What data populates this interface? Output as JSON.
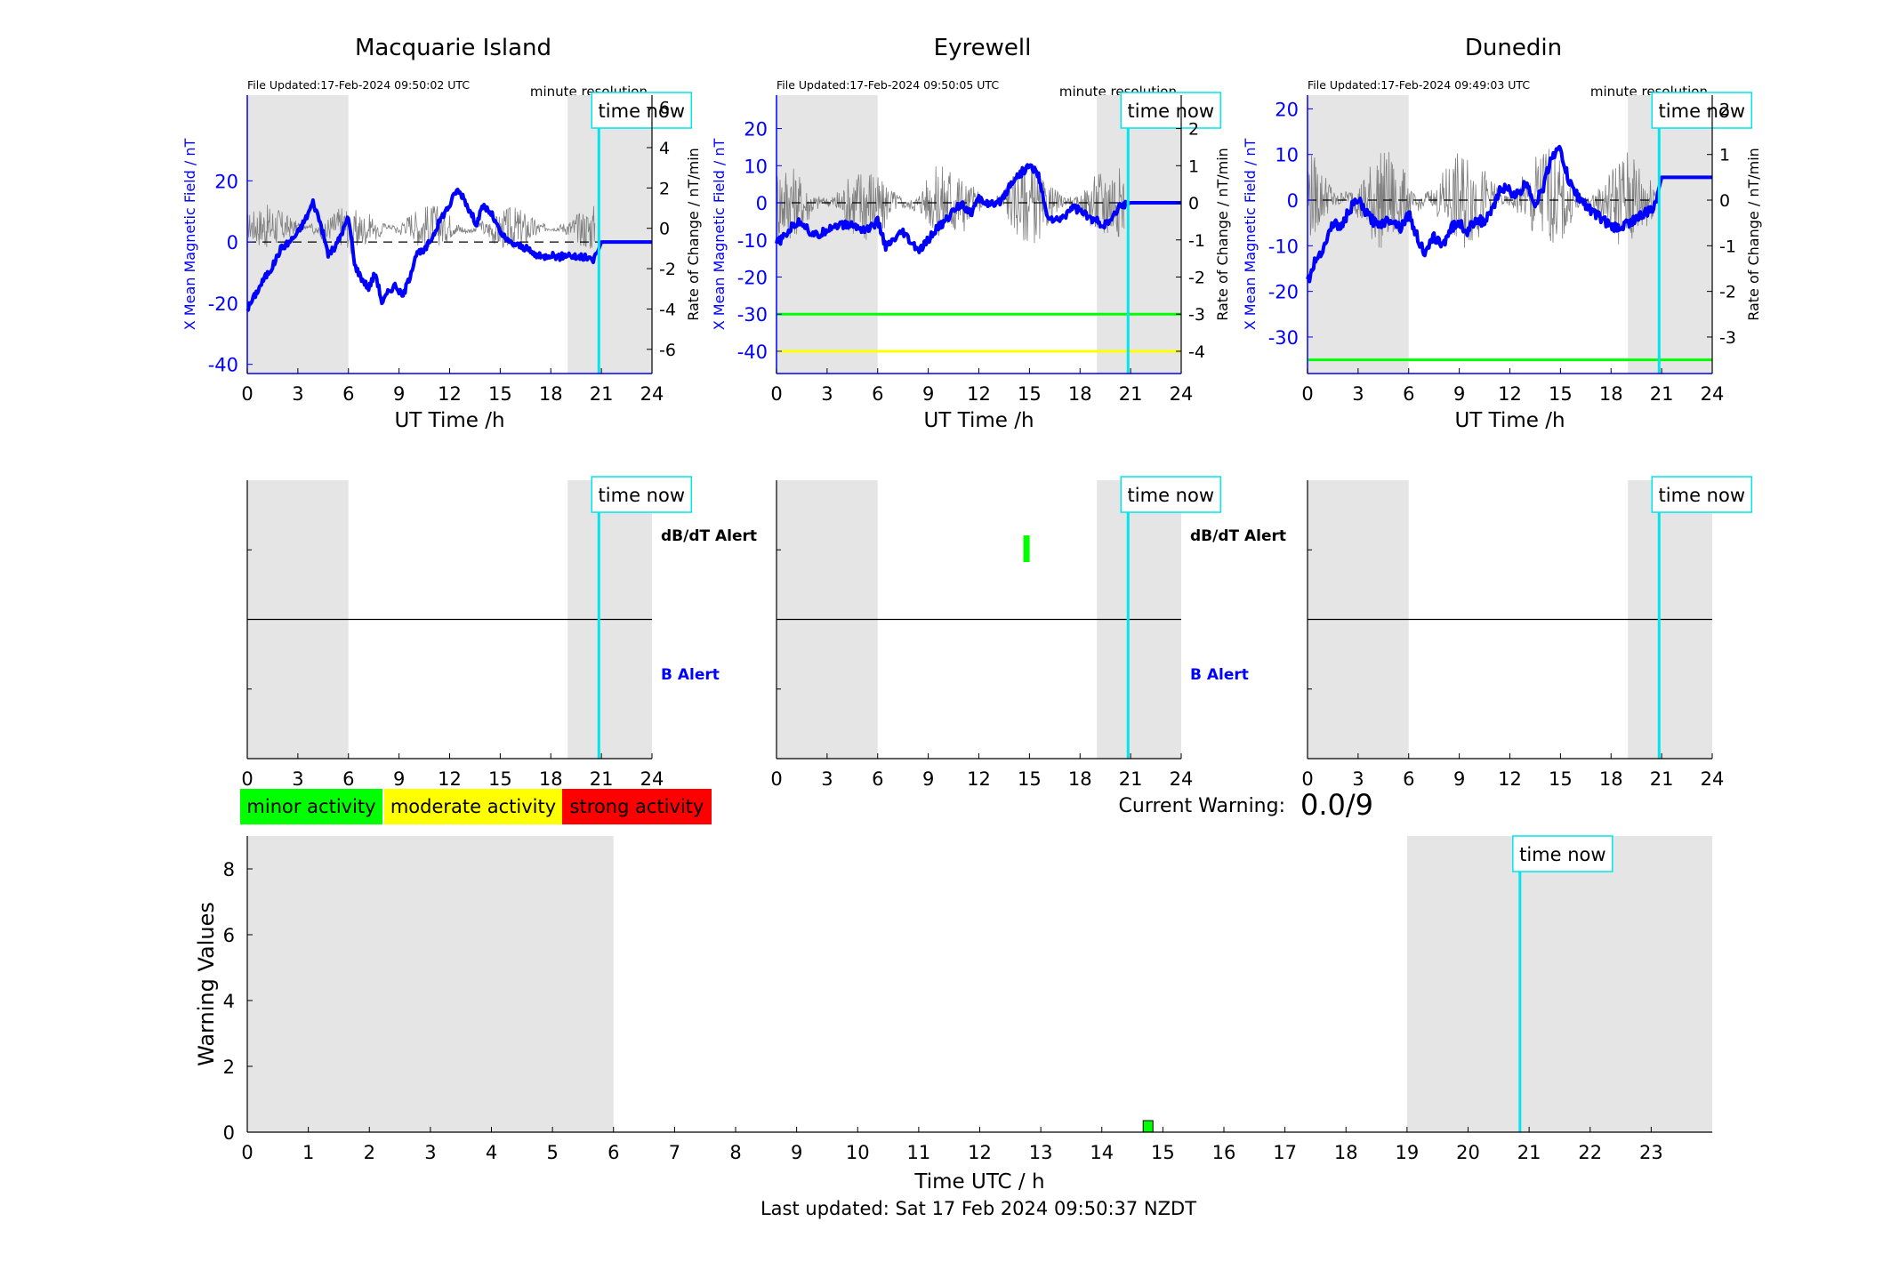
{
  "colors": {
    "night_shade": "#e5e5e5",
    "field_line": "#0000ff",
    "rate_line": "#7f7f7f",
    "time_now_line": "#00e5ee",
    "minor": "#00ff00",
    "moderate": "#ffff00",
    "strong": "#ff0000",
    "alert_text": "#000000",
    "b_alert_text": "#0000ff"
  },
  "common": {
    "time_now_label": "time now",
    "minute_resolution": "minute resolution",
    "xlabel": "UT Time /h",
    "left_ylabel": "X Mean Magnetic Field / nT",
    "right_ylabel": "Rate of Change / nT/min",
    "dbdt_alert_label": "dB/dT Alert",
    "b_alert_label": "B Alert"
  },
  "legend": [
    {
      "label": "minor activity",
      "color": "#00ff00"
    },
    {
      "label": "moderate activity",
      "color": "#ffff00"
    },
    {
      "label": "strong activity",
      "color": "#ff0000"
    }
  ],
  "warning": {
    "label": "Current Warning:",
    "value": "0.0/9"
  },
  "footer": {
    "last_updated": "Last updated: Sat 17 Feb 2024 09:50:37 NZDT"
  },
  "chart_data": [
    {
      "type": "line",
      "title": "Macquarie Island",
      "file_updated": "File Updated:17-Feb-2024 09:50:02 UTC",
      "xlabel": "UT Time /h",
      "ylabel": "X Mean Magnetic Field / nT",
      "ylabel_right": "Rate of Change / nT/min",
      "xlim": [
        0,
        24
      ],
      "xticks": [
        "0",
        "3",
        "6",
        "9",
        "12",
        "15",
        "18",
        "21",
        "24"
      ],
      "ylim": [
        -43,
        48
      ],
      "yticks": [
        -40,
        -20,
        0,
        20
      ],
      "ylim_right": [
        -7.2,
        6.6
      ],
      "yticks_right": [
        -6,
        -4,
        -2,
        0,
        2,
        4,
        6
      ],
      "night_shade": [
        [
          0,
          6
        ],
        [
          19,
          24
        ]
      ],
      "time_now": 20.85,
      "threshold_lines": [],
      "series": [
        {
          "x": [
            0,
            0.3,
            0.7,
            1,
            1.5,
            2,
            2.5,
            3,
            3.5,
            3.9,
            4.3,
            4.8,
            5.2,
            5.6,
            6,
            6.4,
            6.8,
            7.2,
            7.6,
            8,
            8.4,
            8.8,
            9.2,
            9.6,
            10,
            10.5,
            11,
            11.5,
            12,
            12.4,
            12.8,
            13.2,
            13.6,
            14,
            14.5,
            15,
            15.5,
            16,
            16.5,
            17,
            17.5,
            18,
            18.5,
            19,
            19.5,
            20,
            20.5,
            20.8,
            21,
            22,
            23,
            24
          ],
          "y": [
            -22,
            -19,
            -15,
            -12,
            -8,
            -2,
            0,
            3,
            8,
            13,
            7,
            -4,
            -2,
            3,
            8,
            -8,
            -12,
            -15,
            -10,
            -20,
            -16,
            -14,
            -18,
            -12,
            -4,
            -3,
            2,
            8,
            12,
            17,
            15,
            10,
            6,
            12,
            9,
            3,
            0,
            -1,
            -2,
            -4,
            -5,
            -4,
            -5,
            -4,
            -5,
            -5,
            -6,
            -3,
            0,
            0,
            0,
            0
          ]
        }
      ]
    },
    {
      "type": "line",
      "title": "Eyrewell",
      "file_updated": "File Updated:17-Feb-2024 09:50:05 UTC",
      "xlabel": "UT Time /h",
      "ylabel": "X Mean Magnetic Field / nT",
      "ylabel_right": "Rate of Change / nT/min",
      "xlim": [
        0,
        24
      ],
      "xticks": [
        "0",
        "3",
        "6",
        "9",
        "12",
        "15",
        "18",
        "21",
        "24"
      ],
      "ylim": [
        -46,
        29
      ],
      "yticks": [
        -40,
        -30,
        -20,
        -10,
        0,
        10,
        20
      ],
      "ylim_right": [
        -4.6,
        2.9
      ],
      "yticks_right": [
        -4,
        -3,
        -2,
        -1,
        0,
        1,
        2
      ],
      "night_shade": [
        [
          0,
          6
        ],
        [
          19,
          24
        ]
      ],
      "time_now": 20.85,
      "threshold_lines": [
        {
          "value": -30,
          "color": "#00ff00"
        },
        {
          "value": -40,
          "color": "#ffff00"
        }
      ],
      "series": [
        {
          "x": [
            0,
            0.5,
            1,
            1.5,
            2,
            2.5,
            3,
            3.5,
            4,
            4.5,
            5,
            5.5,
            6,
            6.5,
            7,
            7.5,
            8,
            8.5,
            9,
            9.5,
            10,
            10.5,
            11,
            11.5,
            12,
            12.5,
            13,
            13.5,
            14,
            14.5,
            15,
            15.5,
            16,
            16.5,
            17,
            17.5,
            18,
            18.5,
            19,
            19.5,
            20,
            20.3,
            21,
            22,
            23,
            24
          ],
          "y": [
            -11,
            -9,
            -6,
            -5,
            -8,
            -9,
            -7,
            -6,
            -6,
            -6,
            -7,
            -7,
            -5,
            -12,
            -10,
            -8,
            -11,
            -13,
            -10,
            -7,
            -5,
            -2,
            0,
            -3,
            1,
            0,
            -1,
            2,
            6,
            8,
            10,
            8,
            -3,
            -5,
            -4,
            -1,
            -2,
            -4,
            -5,
            -6,
            -4,
            -1,
            0,
            0,
            0,
            0
          ]
        }
      ]
    },
    {
      "type": "line",
      "title": "Dunedin",
      "file_updated": "File Updated:17-Feb-2024 09:49:03 UTC",
      "xlabel": "UT Time /h",
      "ylabel": "X Mean Magnetic Field / nT",
      "ylabel_right": "Rate of Change / nT/min",
      "xlim": [
        0,
        24
      ],
      "xticks": [
        "0",
        "3",
        "6",
        "9",
        "12",
        "15",
        "18",
        "21",
        "24"
      ],
      "ylim": [
        -38,
        23
      ],
      "yticks": [
        -30,
        -20,
        -10,
        0,
        10,
        20
      ],
      "ylim_right": [
        -3.8,
        2.3
      ],
      "yticks_right": [
        -3,
        -2,
        -1,
        0,
        1,
        2
      ],
      "night_shade": [
        [
          0,
          6
        ],
        [
          19,
          24
        ]
      ],
      "time_now": 20.85,
      "threshold_lines": [
        {
          "value": -35,
          "color": "#00ff00"
        }
      ],
      "series": [
        {
          "x": [
            0,
            0.5,
            1,
            1.5,
            2,
            2.5,
            3,
            3.5,
            4,
            4.5,
            5,
            5.5,
            6,
            6.5,
            7,
            7.5,
            8,
            8.5,
            9,
            9.5,
            10,
            10.5,
            11,
            11.5,
            12,
            12.5,
            13,
            13.5,
            14,
            14.5,
            15,
            15.5,
            16,
            16.5,
            17,
            17.5,
            18,
            18.5,
            19,
            19.5,
            20,
            20.5,
            20.8,
            21,
            22,
            23,
            24
          ],
          "y": [
            -18,
            -13,
            -10,
            -5,
            -6,
            -2,
            0,
            -3,
            -5,
            -5,
            -4,
            -6,
            -3,
            -8,
            -12,
            -8,
            -10,
            -6,
            -5,
            -7,
            -4,
            -5,
            -2,
            3,
            2,
            1,
            4,
            -1,
            3,
            10,
            11,
            4,
            1,
            -1,
            -3,
            -4,
            -6,
            -6,
            -5,
            -4,
            -3,
            -2,
            2,
            5,
            5,
            5,
            5
          ]
        }
      ]
    },
    {
      "type": "bar",
      "title": "",
      "xlabel": "Time UTC / h",
      "ylabel": "Warning Values",
      "xlim": [
        0,
        24
      ],
      "xticks": [
        "0",
        "1",
        "2",
        "3",
        "4",
        "5",
        "6",
        "7",
        "8",
        "9",
        "10",
        "11",
        "12",
        "13",
        "14",
        "15",
        "16",
        "17",
        "18",
        "19",
        "20",
        "21",
        "22",
        "23"
      ],
      "ylim": [
        0,
        9
      ],
      "yticks": [
        0,
        2,
        4,
        6,
        8
      ],
      "night_shade": [
        [
          0,
          6
        ],
        [
          19,
          24
        ]
      ],
      "time_now": 20.85,
      "bars": [
        {
          "x": 14.75,
          "value": 0.35,
          "color": "#00ff00"
        }
      ]
    }
  ],
  "alert_panels": [
    {
      "station": "Macquarie Island",
      "show_labels": true,
      "dbdt_alerts": []
    },
    {
      "station": "Eyrewell",
      "show_labels": true,
      "dbdt_alerts": [
        {
          "x": 14.8,
          "level": 1,
          "color": "#00ff00"
        }
      ]
    },
    {
      "station": "Dunedin",
      "show_labels": false,
      "dbdt_alerts": []
    }
  ]
}
